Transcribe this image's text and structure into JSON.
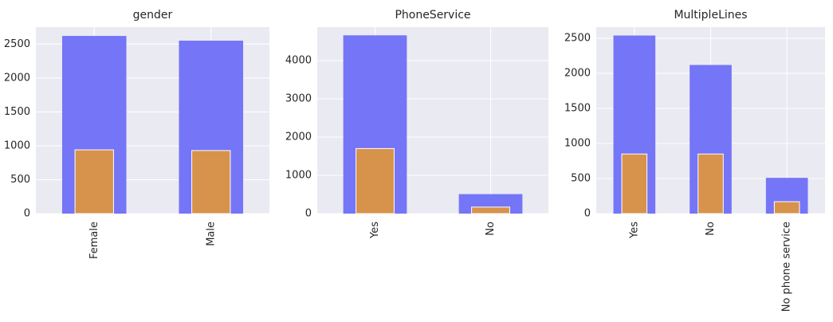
{
  "chart_data": [
    {
      "type": "bar",
      "title": "gender",
      "categories": [
        "Female",
        "Male"
      ],
      "series": [
        {
          "color": "#7575f7",
          "values": [
            2620,
            2550
          ]
        },
        {
          "color": "#d7934b",
          "values": [
            940,
            930
          ]
        }
      ],
      "ylim": [
        0,
        2750
      ],
      "yticks": [
        0,
        500,
        1000,
        1500,
        2000,
        2500
      ],
      "grid": true
    },
    {
      "type": "bar",
      "title": "PhoneService",
      "categories": [
        "Yes",
        "No"
      ],
      "series": [
        {
          "color": "#7575f7",
          "values": [
            4660,
            510
          ]
        },
        {
          "color": "#d7934b",
          "values": [
            1700,
            170
          ]
        }
      ],
      "ylim": [
        0,
        4875
      ],
      "yticks": [
        0,
        1000,
        2000,
        3000,
        4000
      ],
      "grid": true
    },
    {
      "type": "bar",
      "title": "MultipleLines",
      "categories": [
        "Yes",
        "No",
        "No phone service"
      ],
      "series": [
        {
          "color": "#7575f7",
          "values": [
            2540,
            2120,
            510
          ]
        },
        {
          "color": "#d7934b",
          "values": [
            850,
            850,
            170
          ]
        }
      ],
      "ylim": [
        0,
        2660
      ],
      "yticks": [
        0,
        500,
        1000,
        1500,
        2000,
        2500
      ],
      "grid": true
    }
  ]
}
